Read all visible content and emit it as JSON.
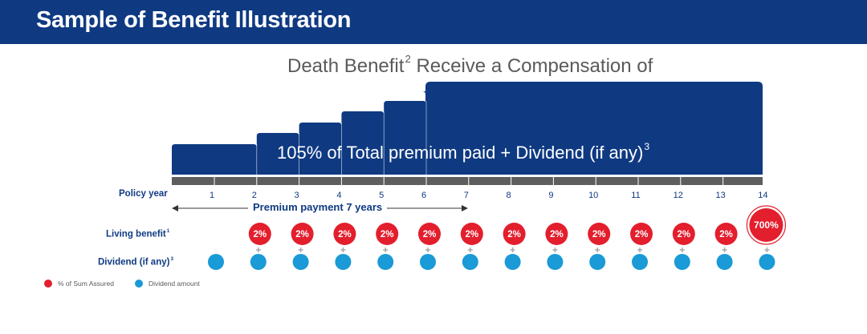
{
  "header": {
    "title": "Sample of Benefit Illustration"
  },
  "main_title": {
    "text": "Death Benefit",
    "superscript": "2",
    "text_after": " Receive a Compensation of"
  },
  "banner": {
    "text": "105% of Total premium paid + Dividend (if any)",
    "superscript": "3"
  },
  "policy_year_label": "Policy year",
  "premium_payment_label": "Premium payment 7 years",
  "living_benefit_label": {
    "text": "Living benefit",
    "superscript": "1"
  },
  "dividend_label": {
    "text": "Dividend (if any)",
    "superscript": "3"
  },
  "legend": {
    "sum_assured": "% of Sum Assured",
    "dividend": "Dividend amount"
  },
  "colors": {
    "navy": "#0f3a82",
    "red": "#e31e2d",
    "blue": "#1a9ad6",
    "axis_gray": "#5e5e5e",
    "plus_gray": "#a7a7a7"
  },
  "chart_data": {
    "type": "diagram",
    "years": [
      "1",
      "2",
      "3",
      "4",
      "5",
      "6",
      "7",
      "8",
      "9",
      "10",
      "11",
      "12",
      "13",
      "14"
    ],
    "premium_payment_years": 7,
    "living_benefit": [
      "",
      "2%",
      "2%",
      "2%",
      "2%",
      "2%",
      "2%",
      "2%",
      "2%",
      "2%",
      "2%",
      "2%",
      "2%",
      "700%"
    ],
    "dividend_years": [
      "1",
      "2",
      "3",
      "4",
      "5",
      "6",
      "7",
      "8",
      "9",
      "10",
      "11",
      "12",
      "13",
      "14"
    ],
    "plus_years": [
      "2",
      "3",
      "4",
      "5",
      "6",
      "7",
      "8",
      "9",
      "10",
      "11",
      "12",
      "13",
      "14"
    ]
  }
}
